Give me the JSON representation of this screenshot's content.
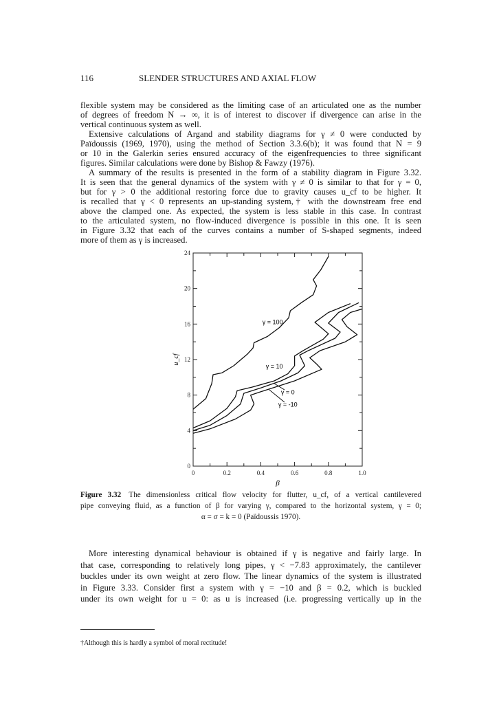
{
  "header": {
    "page_number": "116",
    "running_title": "SLENDER STRUCTURES AND AXIAL FLOW"
  },
  "para1": [
    "flexible system may be considered as the limiting case of an articulated one as the number",
    "of degrees of freedom N → ∞, it is of interest to discover if divergence can arise in the",
    "vertical continuous system as well."
  ],
  "para2": [
    "Extensive calculations of Argand and stability diagrams for γ ≠ 0 were conducted by",
    "Païdoussis (1969, 1970), using the method of Section 3.3.6(b); it was found that N = 9",
    "or 10 in the Galerkin series ensured accuracy of the eigenfrequencies to three significant",
    "figures. Similar calculations were done by Bishop & Fawzy (1976)."
  ],
  "para3": [
    "A summary of the results is presented in the form of a stability diagram in Figure 3.32.",
    "It is seen that the general dynamics of the system with γ ≠ 0 is similar to that for γ = 0,",
    "but for γ > 0 the additional restoring force due to gravity causes u_cf to be higher. It",
    "is recalled that γ < 0 represents an up-standing system,† with the downstream free end",
    "above the clamped one. As expected, the system is less stable in this case. In contrast",
    "to the articulated system, no flow-induced divergence is possible in this one. It is seen",
    "in Figure 3.32 that each of the curves contains a number of S-shaped segments, indeed",
    "more of them as γ is increased."
  ],
  "caption": {
    "label": "Figure 3.32",
    "lines": [
      "The dimensionless critical flow velocity for flutter, u_cf, of a vertical cantilevered",
      "pipe conveying fluid, as a function of β for varying γ, compared to the horizontal system, γ = 0;",
      "α = σ = k = 0 (Païdoussis 1970)."
    ]
  },
  "para4": [
    "More interesting dynamical behaviour is obtained if γ is negative and fairly large. In",
    "that case, corresponding to relatively long pipes, γ < −7.83 approximately, the cantilever",
    "buckles under its own weight at zero flow. The linear dynamics of the system is illustrated",
    "in Figure 3.33. Consider first a system with γ = −10 and β = 0.2, which is buckled",
    "under its own weight for u = 0: as u is increased (i.e. progressing vertically up in the"
  ],
  "footnote": "†Although this is hardly a symbol of moral rectitude!",
  "chart_data": {
    "type": "line",
    "xlabel": "β",
    "ylabel": "u_cf",
    "xlim": [
      0,
      1.0
    ],
    "ylim": [
      0,
      24
    ],
    "xticks": [
      "0",
      "0.2",
      "0.4",
      "0.6",
      "0.8",
      "1.0"
    ],
    "yticks": [
      "0",
      "4",
      "8",
      "12",
      "16",
      "20",
      "24"
    ],
    "grid": false,
    "series": [
      {
        "name": "γ = 100",
        "label_at": [
          0.47,
          16.0
        ],
        "points": [
          [
            0,
            6.4
          ],
          [
            0.075,
            7.6
          ],
          [
            0.11,
            9.3
          ],
          [
            0.118,
            10.3
          ],
          [
            0.17,
            10.5
          ],
          [
            0.24,
            11.3
          ],
          [
            0.32,
            12.6
          ],
          [
            0.354,
            13.3
          ],
          [
            0.36,
            13.9
          ],
          [
            0.44,
            14.6
          ],
          [
            0.51,
            15.6
          ],
          [
            0.565,
            16.7
          ],
          [
            0.575,
            17.5
          ],
          [
            0.64,
            18.4
          ],
          [
            0.71,
            19.3
          ],
          [
            0.73,
            20.3
          ],
          [
            0.71,
            21.0
          ],
          [
            0.755,
            22.1
          ],
          [
            0.8,
            23.6
          ]
        ]
      },
      {
        "name": "γ = 10",
        "label_at": [
          0.48,
          11.0
        ],
        "points": [
          [
            0,
            4.3
          ],
          [
            0.1,
            5.1
          ],
          [
            0.2,
            6.5
          ],
          [
            0.25,
            7.8
          ],
          [
            0.26,
            8.5
          ],
          [
            0.35,
            8.9
          ],
          [
            0.48,
            9.6
          ],
          [
            0.56,
            10.4
          ],
          [
            0.6,
            11.3
          ],
          [
            0.6,
            12.4
          ],
          [
            0.65,
            13.0
          ],
          [
            0.77,
            14.3
          ],
          [
            0.8,
            14.9
          ],
          [
            0.72,
            16.2
          ],
          [
            0.8,
            17.3
          ],
          [
            0.93,
            18.3
          ]
        ]
      },
      {
        "name": "γ = 0",
        "label_at": [
          0.56,
          8.1
        ],
        "points": [
          [
            0,
            4.0
          ],
          [
            0.1,
            4.6
          ],
          [
            0.2,
            5.7
          ],
          [
            0.28,
            7.0
          ],
          [
            0.3,
            8.2
          ],
          [
            0.4,
            8.8
          ],
          [
            0.52,
            9.6
          ],
          [
            0.62,
            10.5
          ],
          [
            0.66,
            11.3
          ],
          [
            0.63,
            12.5
          ],
          [
            0.68,
            13.0
          ],
          [
            0.84,
            14.4
          ],
          [
            0.87,
            15.1
          ],
          [
            0.8,
            16.1
          ],
          [
            0.86,
            17.3
          ],
          [
            0.98,
            18.4
          ]
        ]
      },
      {
        "name": "γ = -10",
        "label_at": [
          0.56,
          6.7
        ],
        "points": [
          [
            0,
            3.7
          ],
          [
            0.1,
            4.2
          ],
          [
            0.25,
            5.3
          ],
          [
            0.34,
            6.3
          ],
          [
            0.36,
            7.0
          ],
          [
            0.34,
            8.0
          ],
          [
            0.42,
            8.5
          ],
          [
            0.6,
            9.6
          ],
          [
            0.76,
            10.9
          ],
          [
            0.73,
            11.5
          ],
          [
            0.69,
            12.2
          ],
          [
            0.75,
            13.0
          ],
          [
            0.9,
            14.0
          ],
          [
            0.97,
            14.8
          ],
          [
            0.91,
            15.7
          ],
          [
            0.88,
            16.5
          ],
          [
            0.93,
            17.3
          ],
          [
            1.0,
            17.7
          ]
        ]
      }
    ]
  }
}
